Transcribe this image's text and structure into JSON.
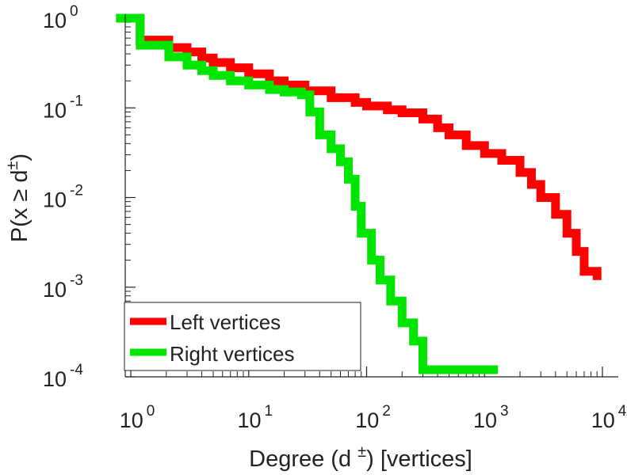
{
  "chart_data": {
    "type": "line",
    "step": true,
    "xlabel": "Degree (d ±) [vertices]",
    "ylabel": "P(x ≥ d±)",
    "xscale": "log",
    "yscale": "log",
    "xlim": [
      0.75,
      10000
    ],
    "ylim": [
      0.0001,
      1
    ],
    "x_ticks": [
      {
        "base": "10",
        "exp": "0",
        "value": 1
      },
      {
        "base": "10",
        "exp": "1",
        "value": 10
      },
      {
        "base": "10",
        "exp": "2",
        "value": 100
      },
      {
        "base": "10",
        "exp": "3",
        "value": 1000
      },
      {
        "base": "10",
        "exp": "4",
        "value": 10000
      }
    ],
    "y_ticks": [
      {
        "base": "10",
        "exp": "0",
        "value": 1
      },
      {
        "base": "10",
        "exp": "-1",
        "value": 0.1
      },
      {
        "base": "10",
        "exp": "-2",
        "value": 0.01
      },
      {
        "base": "10",
        "exp": "-3",
        "value": 0.001
      },
      {
        "base": "10",
        "exp": "-4",
        "value": 0.0001
      }
    ],
    "legend": {
      "position": "bottom-left"
    },
    "series": [
      {
        "name": "Left vertices",
        "color": "#ff0000",
        "points": [
          [
            0.75,
            1.0
          ],
          [
            1.1,
            1.0
          ],
          [
            1.2,
            0.57
          ],
          [
            2.0,
            0.57
          ],
          [
            2.1,
            0.47
          ],
          [
            3.0,
            0.42
          ],
          [
            4.0,
            0.36
          ],
          [
            5.0,
            0.32
          ],
          [
            7.0,
            0.28
          ],
          [
            10.0,
            0.24
          ],
          [
            15.0,
            0.2
          ],
          [
            20.0,
            0.18
          ],
          [
            30.0,
            0.155
          ],
          [
            50.0,
            0.13
          ],
          [
            80.0,
            0.115
          ],
          [
            100.0,
            0.105
          ],
          [
            150.0,
            0.095
          ],
          [
            200.0,
            0.088
          ],
          [
            300.0,
            0.075
          ],
          [
            400.0,
            0.06
          ],
          [
            500.0,
            0.05
          ],
          [
            700.0,
            0.038
          ],
          [
            1000.0,
            0.031
          ],
          [
            1400.0,
            0.026
          ],
          [
            2000.0,
            0.019
          ],
          [
            2500.0,
            0.014
          ],
          [
            3000.0,
            0.01
          ],
          [
            4000.0,
            0.0065
          ],
          [
            5000.0,
            0.004
          ],
          [
            6000.0,
            0.0025
          ],
          [
            7000.0,
            0.0015
          ],
          [
            9000.0,
            0.0012
          ]
        ]
      },
      {
        "name": "Right vertices",
        "color": "#00e600",
        "points": [
          [
            0.75,
            1.0
          ],
          [
            1.1,
            1.0
          ],
          [
            1.2,
            0.5
          ],
          [
            2.0,
            0.5
          ],
          [
            2.1,
            0.37
          ],
          [
            3.0,
            0.3
          ],
          [
            4.0,
            0.26
          ],
          [
            5.0,
            0.23
          ],
          [
            7.0,
            0.2
          ],
          [
            10.0,
            0.18
          ],
          [
            15.0,
            0.16
          ],
          [
            20.0,
            0.15
          ],
          [
            28.0,
            0.14
          ],
          [
            33.0,
            0.09
          ],
          [
            40.0,
            0.05
          ],
          [
            50.0,
            0.035
          ],
          [
            60.0,
            0.025
          ],
          [
            70.0,
            0.016
          ],
          [
            80.0,
            0.008
          ],
          [
            90.0,
            0.004
          ],
          [
            110.0,
            0.002
          ],
          [
            130.0,
            0.0012
          ],
          [
            160.0,
            0.0007
          ],
          [
            200.0,
            0.0004
          ],
          [
            250.0,
            0.00025
          ],
          [
            300.0,
            0.00012
          ],
          [
            1300.0,
            0.00012
          ]
        ]
      }
    ]
  }
}
